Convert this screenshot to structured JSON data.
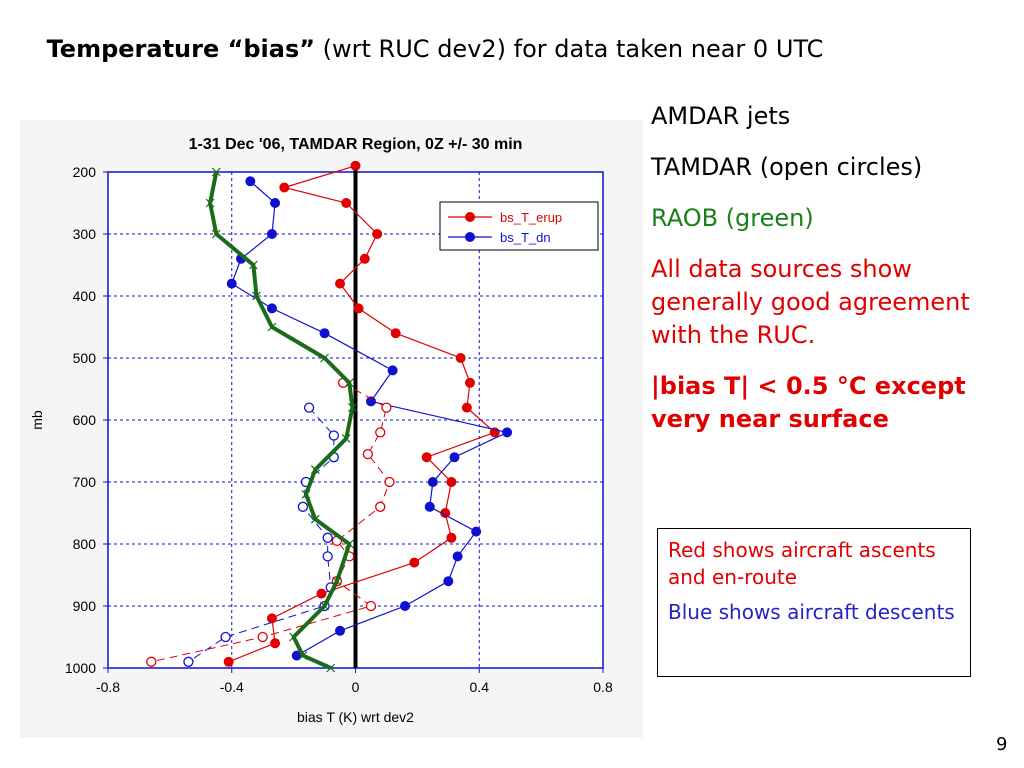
{
  "slide": {
    "title_bold": "Temperature “bias”",
    "title_rest": " (wrt RUC dev2) for data taken near 0 UTC",
    "page_number": "9"
  },
  "bullets": [
    {
      "text": "AMDAR jets",
      "color": "#000000"
    },
    {
      "text": "TAMDAR (open circles)",
      "color": "#000000"
    },
    {
      "text": "RAOB (green)",
      "color": "#1b7f1b"
    },
    {
      "text": "All data sources show generally good agreement with the RUC.",
      "color": "#e00000"
    },
    {
      "text": "|bias T| < 0.5 °C except very near surface",
      "color": "#e00000"
    }
  ],
  "note": {
    "red_text": "Red shows aircraft ascents and en-route",
    "blue_text": "Blue shows aircraft descents"
  },
  "chart_data": {
    "type": "line",
    "title": "1-31 Dec '06, TAMDAR Region, 0Z +/- 30 min",
    "xlabel": "bias T (K) wrt dev2",
    "ylabel": "mb",
    "xlim": [
      -0.8,
      0.8
    ],
    "ylim": [
      1000,
      200
    ],
    "y_inverted": true,
    "xticks": [
      "-0.8",
      "-0.4",
      "0",
      "0.4",
      "0.8"
    ],
    "yticks": [
      "200",
      "300",
      "400",
      "500",
      "600",
      "700",
      "800",
      "900",
      "1000"
    ],
    "grid": true,
    "legend_position": "top-right",
    "legend": [
      "bs_T_erup",
      "bs_T_dn"
    ],
    "colors": {
      "red": "#e00000",
      "blue": "#1010d0",
      "green": "#1a6b1a",
      "zero_line": "#000000"
    },
    "series": [
      {
        "name": "bs_T_erup",
        "style": "solid-filled",
        "points": [
          [
            0.0,
            190
          ],
          [
            -0.23,
            225
          ],
          [
            -0.03,
            250
          ],
          [
            0.07,
            300
          ],
          [
            0.03,
            340
          ],
          [
            -0.05,
            380
          ],
          [
            0.01,
            420
          ],
          [
            0.13,
            460
          ],
          [
            0.34,
            500
          ],
          [
            0.37,
            540
          ],
          [
            0.36,
            580
          ],
          [
            0.45,
            620
          ],
          [
            0.23,
            660
          ],
          [
            0.31,
            700
          ],
          [
            0.29,
            750
          ],
          [
            0.31,
            790
          ],
          [
            0.19,
            830
          ],
          [
            -0.11,
            880
          ],
          [
            -0.27,
            920
          ],
          [
            -0.26,
            960
          ],
          [
            -0.41,
            990
          ]
        ]
      },
      {
        "name": "bs_T_dn",
        "style": "solid-filled",
        "points": [
          [
            -0.34,
            215
          ],
          [
            -0.26,
            250
          ],
          [
            -0.27,
            300
          ],
          [
            -0.37,
            340
          ],
          [
            -0.4,
            380
          ],
          [
            -0.27,
            420
          ],
          [
            -0.1,
            460
          ],
          [
            0.12,
            520
          ],
          [
            0.05,
            570
          ],
          [
            0.49,
            620
          ],
          [
            0.32,
            660
          ],
          [
            0.25,
            700
          ],
          [
            0.24,
            740
          ],
          [
            0.39,
            780
          ],
          [
            0.33,
            820
          ],
          [
            0.3,
            860
          ],
          [
            0.16,
            900
          ],
          [
            -0.05,
            940
          ],
          [
            -0.19,
            980
          ]
        ]
      },
      {
        "name": "TAMDAR ascent",
        "style": "dashed-open",
        "color": "red",
        "points": [
          [
            -0.04,
            540
          ],
          [
            0.1,
            580
          ],
          [
            0.08,
            620
          ],
          [
            0.04,
            655
          ],
          [
            0.11,
            700
          ],
          [
            0.08,
            740
          ],
          [
            -0.06,
            795
          ],
          [
            -0.02,
            820
          ],
          [
            -0.06,
            860
          ],
          [
            0.05,
            900
          ],
          [
            -0.3,
            950
          ],
          [
            -0.66,
            990
          ]
        ]
      },
      {
        "name": "TAMDAR descent",
        "style": "dashed-open",
        "color": "blue",
        "points": [
          [
            -0.15,
            580
          ],
          [
            -0.07,
            625
          ],
          [
            -0.07,
            660
          ],
          [
            -0.16,
            700
          ],
          [
            -0.17,
            740
          ],
          [
            -0.09,
            790
          ],
          [
            -0.09,
            820
          ],
          [
            -0.08,
            870
          ],
          [
            -0.1,
            900
          ],
          [
            -0.42,
            950
          ],
          [
            -0.54,
            990
          ]
        ]
      },
      {
        "name": "RAOB",
        "style": "thick",
        "color": "green",
        "points": [
          [
            -0.45,
            200
          ],
          [
            -0.47,
            250
          ],
          [
            -0.45,
            300
          ],
          [
            -0.33,
            350
          ],
          [
            -0.32,
            400
          ],
          [
            -0.27,
            450
          ],
          [
            -0.1,
            500
          ],
          [
            -0.02,
            540
          ],
          [
            -0.01,
            580
          ],
          [
            -0.03,
            630
          ],
          [
            -0.13,
            680
          ],
          [
            -0.16,
            720
          ],
          [
            -0.13,
            760
          ],
          [
            -0.02,
            800
          ],
          [
            -0.06,
            860
          ],
          [
            -0.1,
            900
          ],
          [
            -0.2,
            950
          ],
          [
            -0.17,
            980
          ],
          [
            -0.08,
            1000
          ]
        ]
      }
    ]
  }
}
